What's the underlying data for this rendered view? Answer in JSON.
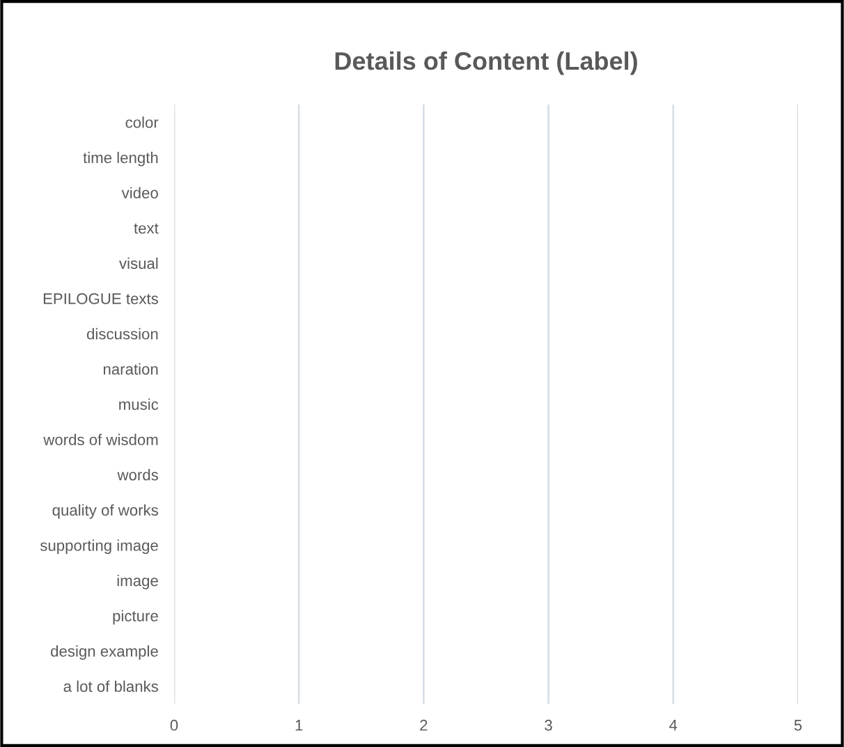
{
  "chart_data": {
    "type": "bar",
    "orientation": "horizontal",
    "title": "Details of Content (Label)",
    "categories": [
      "color",
      "time length",
      "video",
      "text",
      "visual",
      "EPILOGUE texts",
      "discussion",
      "naration",
      "music",
      "words of wisdom",
      "words",
      "quality of works",
      "supporting image",
      "image",
      "picture",
      "design example",
      "a lot of blanks"
    ],
    "values": [
      null,
      null,
      null,
      null,
      null,
      null,
      null,
      null,
      null,
      null,
      null,
      null,
      null,
      null,
      null,
      null,
      null
    ],
    "xlim": [
      0,
      5
    ],
    "xticks": [
      0,
      1,
      2,
      3,
      4,
      5
    ],
    "grid": "x"
  }
}
